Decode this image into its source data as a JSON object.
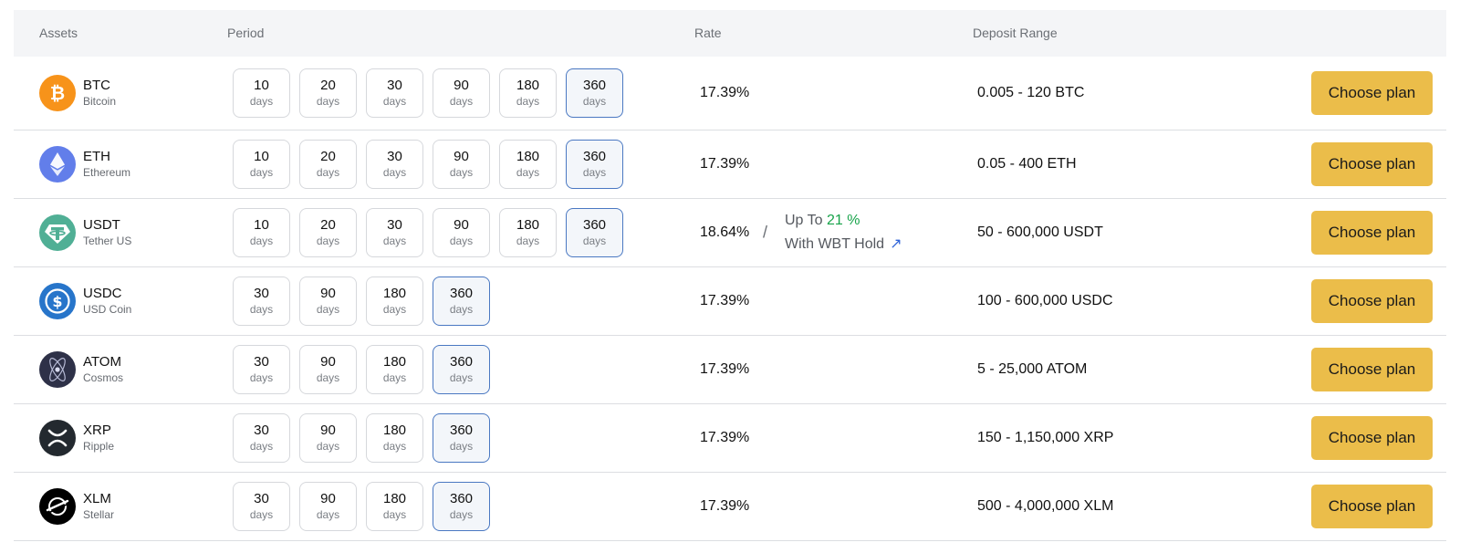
{
  "header": {
    "assets": "Assets",
    "period": "Period",
    "rate": "Rate",
    "deposit_range": "Deposit Range"
  },
  "rows": [
    {
      "symbol": "BTC",
      "name": "Bitcoin",
      "icon": "bitcoin-icon",
      "icon_color": "#f7931a",
      "periods": [
        {
          "num": "10",
          "unit": "days"
        },
        {
          "num": "20",
          "unit": "days"
        },
        {
          "num": "30",
          "unit": "days"
        },
        {
          "num": "90",
          "unit": "days"
        },
        {
          "num": "180",
          "unit": "days"
        },
        {
          "num": "360",
          "unit": "days"
        }
      ],
      "selected_period": "360",
      "rate": "17.39%",
      "range": "0.005 - 120 BTC",
      "button": "Choose plan"
    },
    {
      "symbol": "ETH",
      "name": "Ethereum",
      "icon": "ethereum-icon",
      "icon_color": "#627eea",
      "periods": [
        {
          "num": "10",
          "unit": "days"
        },
        {
          "num": "20",
          "unit": "days"
        },
        {
          "num": "30",
          "unit": "days"
        },
        {
          "num": "90",
          "unit": "days"
        },
        {
          "num": "180",
          "unit": "days"
        },
        {
          "num": "360",
          "unit": "days"
        }
      ],
      "selected_period": "360",
      "rate": "17.39%",
      "range": "0.05 - 400 ETH",
      "button": "Choose plan"
    },
    {
      "symbol": "USDT",
      "name": "Tether US",
      "icon": "tether-icon",
      "icon_color": "#50af95",
      "periods": [
        {
          "num": "10",
          "unit": "days"
        },
        {
          "num": "20",
          "unit": "days"
        },
        {
          "num": "30",
          "unit": "days"
        },
        {
          "num": "90",
          "unit": "days"
        },
        {
          "num": "180",
          "unit": "days"
        },
        {
          "num": "360",
          "unit": "days"
        }
      ],
      "selected_period": "360",
      "rate": "18.64%",
      "range": "50 - 600,000 USDT",
      "button": "Choose plan",
      "bonus": {
        "slash": "/",
        "prefix": "Up To",
        "value": "21 %",
        "line2": "With WBT Hold",
        "arrow": "↗"
      }
    },
    {
      "symbol": "USDC",
      "name": "USD Coin",
      "icon": "usdc-icon",
      "icon_color": "#2775ca",
      "periods": [
        {
          "num": "30",
          "unit": "days"
        },
        {
          "num": "90",
          "unit": "days"
        },
        {
          "num": "180",
          "unit": "days"
        },
        {
          "num": "360",
          "unit": "days"
        }
      ],
      "selected_period": "360",
      "rate": "17.39%",
      "range": "100 - 600,000 USDC",
      "button": "Choose plan"
    },
    {
      "symbol": "ATOM",
      "name": "Cosmos",
      "icon": "cosmos-icon",
      "icon_color": "#2e3148",
      "periods": [
        {
          "num": "30",
          "unit": "days"
        },
        {
          "num": "90",
          "unit": "days"
        },
        {
          "num": "180",
          "unit": "days"
        },
        {
          "num": "360",
          "unit": "days"
        }
      ],
      "selected_period": "360",
      "rate": "17.39%",
      "range": "5 - 25,000 ATOM",
      "button": "Choose plan"
    },
    {
      "symbol": "XRP",
      "name": "Ripple",
      "icon": "ripple-icon",
      "icon_color": "#23292f",
      "periods": [
        {
          "num": "30",
          "unit": "days"
        },
        {
          "num": "90",
          "unit": "days"
        },
        {
          "num": "180",
          "unit": "days"
        },
        {
          "num": "360",
          "unit": "days"
        }
      ],
      "selected_period": "360",
      "rate": "17.39%",
      "range": "150 - 1,150,000 XRP",
      "button": "Choose plan"
    },
    {
      "symbol": "XLM",
      "name": "Stellar",
      "icon": "stellar-icon",
      "icon_color": "#000000",
      "periods": [
        {
          "num": "30",
          "unit": "days"
        },
        {
          "num": "90",
          "unit": "days"
        },
        {
          "num": "180",
          "unit": "days"
        },
        {
          "num": "360",
          "unit": "days"
        }
      ],
      "selected_period": "360",
      "rate": "17.39%",
      "range": "500 - 4,000,000 XLM",
      "button": "Choose plan"
    }
  ],
  "colors": {
    "accent_button": "#ebbd4a",
    "selected_border": "#4a78c2",
    "bonus_green": "#17a34a",
    "link_blue": "#2f63d8"
  }
}
